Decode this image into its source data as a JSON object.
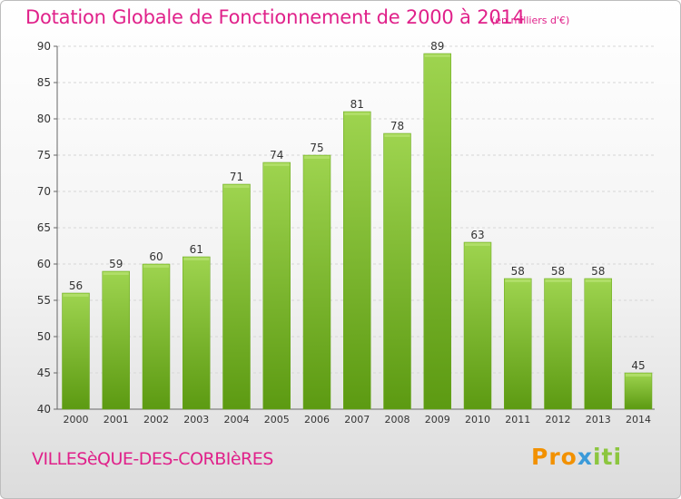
{
  "header": {
    "title": "Dotation Globale de Fonctionnement de 2000 à 2014",
    "subtitle": "(en milliers d'€)"
  },
  "footer": {
    "commune": "VILLESèQUE-DES-CORBIèRES",
    "logo": {
      "part1": "Pro",
      "part2": "x",
      "part3": "iti"
    }
  },
  "colors": {
    "title": "#e0218a",
    "bar_top": "#9ed44f",
    "bar_bottom": "#5c9a12",
    "label": "#333333"
  },
  "chart_data": {
    "type": "bar",
    "title": "Dotation Globale de Fonctionnement de 2000 à 2014",
    "subtitle": "(en milliers d'€)",
    "categories": [
      "2000",
      "2001",
      "2002",
      "2003",
      "2004",
      "2005",
      "2006",
      "2007",
      "2008",
      "2009",
      "2010",
      "2011",
      "2012",
      "2013",
      "2014"
    ],
    "values": [
      56,
      59,
      60,
      61,
      71,
      74,
      75,
      81,
      78,
      89,
      63,
      58,
      58,
      58,
      45
    ],
    "ylim": [
      40,
      90
    ],
    "yticks": [
      40,
      45,
      50,
      55,
      60,
      65,
      70,
      75,
      80,
      85,
      90
    ],
    "grid": true,
    "legend": "none"
  }
}
